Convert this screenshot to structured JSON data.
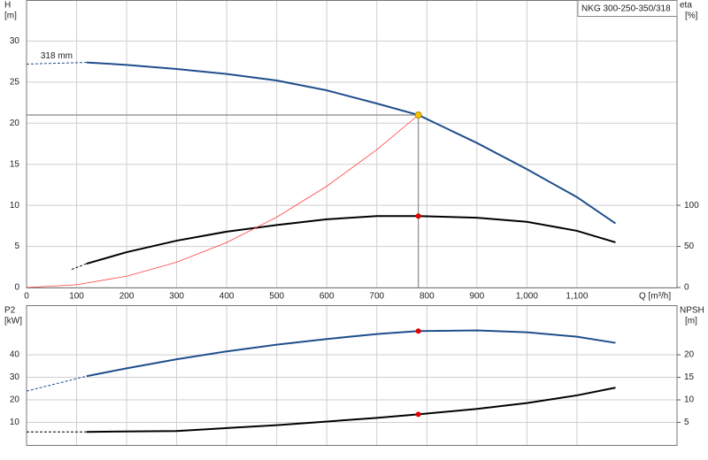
{
  "chart_data": [
    {
      "type": "line",
      "title": "NKG 300-250-350/318",
      "y_label": [
        "H",
        "[m]"
      ],
      "y2_label": [
        "eta",
        "[%]"
      ],
      "x_label": "Q [m³/h]",
      "annotation": {
        "text": "318 mm",
        "x": 60,
        "y": 28.2
      },
      "xlim": [
        0,
        1300
      ],
      "xticks": [
        0,
        100,
        200,
        300,
        400,
        500,
        600,
        700,
        800,
        900,
        {
          "value": 1000,
          "label": "1,000"
        },
        {
          "value": 1100,
          "label": "1,100"
        }
      ],
      "ylim": [
        0,
        35
      ],
      "yticks": [
        0,
        5,
        10,
        15,
        20,
        25,
        30
      ],
      "y2lim": [
        0,
        350
      ],
      "y2ticks": [
        0,
        50,
        100
      ],
      "grid": true,
      "series": [
        {
          "color": "#1f4e8c",
          "dash": true,
          "x": [
            0,
            120
          ],
          "values": [
            27.2,
            27.4
          ]
        },
        {
          "color": "#1f4e8c",
          "x": [
            120,
            200,
            300,
            400,
            500,
            600,
            700,
            783,
            900,
            1000,
            1100,
            1177
          ],
          "values": [
            27.4,
            27.1,
            26.6,
            26.0,
            25.2,
            24.0,
            22.4,
            21.0,
            17.6,
            14.4,
            11.0,
            7.8
          ]
        },
        {
          "color": "#000000",
          "dash": true,
          "axis": "y2",
          "x": [
            90,
            120
          ],
          "values": [
            22,
            29
          ]
        },
        {
          "color": "#000000",
          "axis": "y2",
          "x": [
            120,
            200,
            300,
            400,
            500,
            600,
            700,
            783,
            900,
            1000,
            1100,
            1177
          ],
          "values": [
            29,
            43,
            57,
            68,
            76,
            83,
            87,
            87,
            85,
            80,
            69,
            55
          ]
        },
        {
          "color": "#ff4040",
          "thin": true,
          "x": [
            0,
            100,
            200,
            300,
            400,
            500,
            600,
            700,
            783
          ],
          "values": [
            0,
            0.34,
            1.37,
            3.08,
            5.48,
            8.56,
            12.33,
            16.78,
            21.0
          ]
        }
      ],
      "operating_point": {
        "x": 783,
        "y": 21.0,
        "color": "#f5c400"
      },
      "markers": [
        {
          "x": 783,
          "y": 87,
          "axis": "y2",
          "color": "#e00000"
        }
      ]
    },
    {
      "type": "line",
      "y_label": [
        "P2",
        "[kW]"
      ],
      "y2_label": [
        "NPSH",
        "[m]"
      ],
      "xlim": [
        0,
        1300
      ],
      "ylim": [
        0,
        62
      ],
      "yticks": [
        10,
        20,
        30,
        40
      ],
      "y2lim": [
        0,
        31
      ],
      "y2ticks": [
        5,
        10,
        15,
        20
      ],
      "grid": true,
      "series": [
        {
          "color": "#1f4e8c",
          "dash": true,
          "x": [
            0,
            120
          ],
          "values": [
            23.9,
            30.5
          ]
        },
        {
          "color": "#1f4e8c",
          "x": [
            120,
            200,
            300,
            400,
            500,
            600,
            700,
            783,
            900,
            1000,
            1100,
            1177
          ],
          "values": [
            30.5,
            34.0,
            38.0,
            41.5,
            44.5,
            47.0,
            49.2,
            50.5,
            50.8,
            50.0,
            48.0,
            45.3
          ]
        },
        {
          "color": "#000000",
          "dash": true,
          "axis": "y2",
          "x": [
            0,
            120
          ],
          "values": [
            2.9,
            2.9
          ]
        },
        {
          "color": "#000000",
          "axis": "y2",
          "x": [
            120,
            300,
            500,
            700,
            783,
            900,
            1000,
            1100,
            1177
          ],
          "values": [
            2.9,
            3.1,
            4.4,
            6.0,
            6.8,
            8.0,
            9.3,
            11.0,
            12.7
          ]
        }
      ],
      "markers": [
        {
          "x": 783,
          "y": 50.5,
          "color": "#e00000"
        },
        {
          "x": 783,
          "y": 6.8,
          "axis": "y2",
          "color": "#e00000"
        }
      ]
    }
  ]
}
